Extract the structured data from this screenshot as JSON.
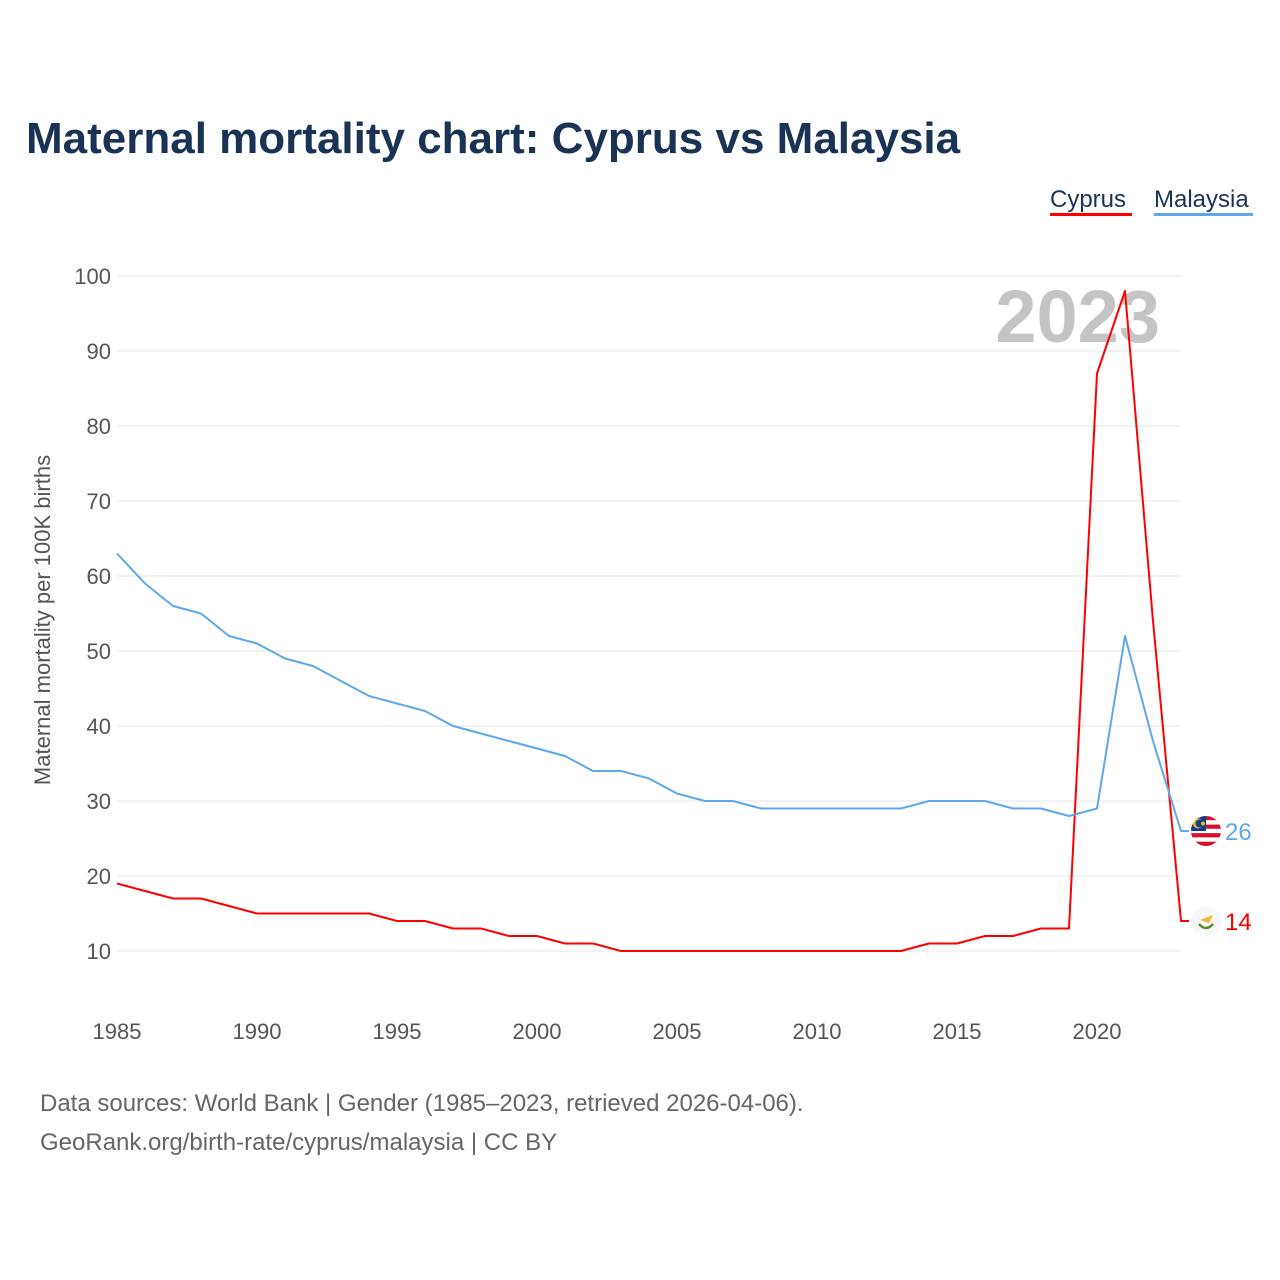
{
  "chart_data": {
    "type": "line",
    "title": "Maternal mortality chart: Cyprus vs Malaysia",
    "ylabel": "Maternal mortality per 100K births",
    "xlabel": "",
    "xlim": [
      1985,
      2023
    ],
    "ylim": [
      10,
      100
    ],
    "yticks": [
      10,
      20,
      30,
      40,
      50,
      60,
      70,
      80,
      90,
      100
    ],
    "xticks": [
      1985,
      1990,
      1995,
      2000,
      2005,
      2010,
      2015,
      2020
    ],
    "grid": true,
    "legend_position": "top-right",
    "year_watermark": "2023",
    "x": [
      1985,
      1986,
      1987,
      1988,
      1989,
      1990,
      1991,
      1992,
      1993,
      1994,
      1995,
      1996,
      1997,
      1998,
      1999,
      2000,
      2001,
      2002,
      2003,
      2004,
      2005,
      2006,
      2007,
      2008,
      2009,
      2010,
      2011,
      2012,
      2013,
      2014,
      2015,
      2016,
      2017,
      2018,
      2019,
      2020,
      2021,
      2022,
      2023
    ],
    "series": [
      {
        "name": "Cyprus",
        "color": "#ff0000",
        "end_label": "14",
        "flag": "cyprus-flag",
        "values": [
          19,
          18,
          17,
          17,
          16,
          15,
          15,
          15,
          15,
          15,
          14,
          14,
          13,
          13,
          12,
          12,
          11,
          11,
          10,
          10,
          10,
          10,
          10,
          10,
          10,
          10,
          10,
          10,
          10,
          11,
          11,
          12,
          12,
          13,
          13,
          87,
          98,
          54,
          14
        ]
      },
      {
        "name": "Malaysia",
        "color": "#5fa8ec",
        "end_label": "26",
        "flag": "malaysia-flag",
        "values": [
          63,
          59,
          56,
          55,
          52,
          51,
          49,
          48,
          46,
          44,
          43,
          42,
          40,
          39,
          38,
          37,
          36,
          34,
          34,
          33,
          31,
          30,
          30,
          29,
          29,
          29,
          29,
          29,
          29,
          30,
          30,
          30,
          29,
          29,
          28,
          29,
          52,
          38,
          26
        ]
      }
    ]
  },
  "footer": {
    "line1": "Data sources: World Bank | Gender (1985–2023, retrieved 2026-04-06).",
    "line2": "GeoRank.org/birth-rate/cyprus/malaysia | CC BY"
  }
}
